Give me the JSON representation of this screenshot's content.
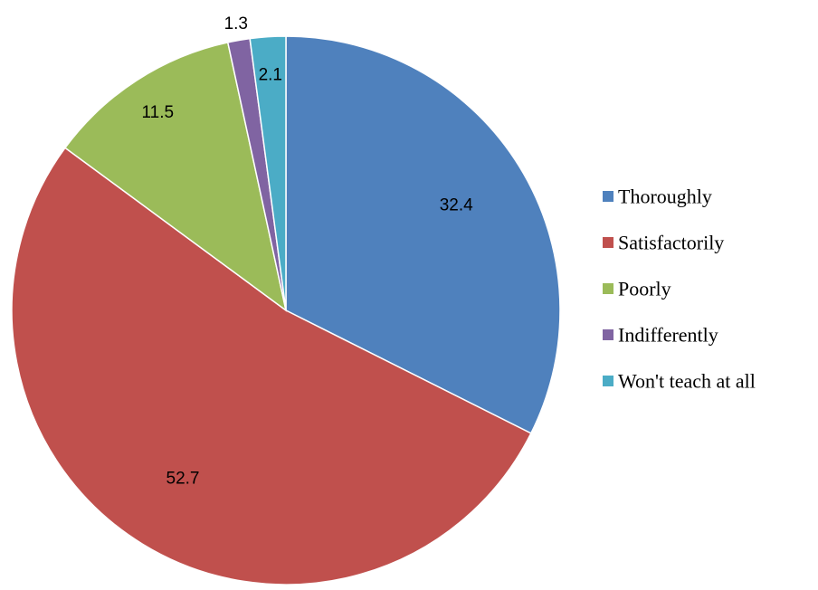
{
  "chart_data": {
    "type": "pie",
    "title": "",
    "legend_position": "right",
    "start_angle_deg": 0,
    "direction": "clockwise",
    "slices": [
      {
        "label": "Thoroughly",
        "value": 32.4,
        "value_label": "32.4",
        "color": "#4F81BD",
        "stroke": "#ffffff"
      },
      {
        "label": "Satisfactorily",
        "value": 52.7,
        "value_label": "52.7",
        "color": "#C0504D",
        "stroke": "#ffffff"
      },
      {
        "label": "Poorly",
        "value": 11.5,
        "value_label": "11.5",
        "color": "#9BBB59",
        "stroke": "#ffffff"
      },
      {
        "label": "Indifferently",
        "value": 1.3,
        "value_label": "1.3",
        "color": "#8064A2",
        "stroke": "#ffffff"
      },
      {
        "label": "Won't teach at all",
        "value": 2.1,
        "value_label": "2.1",
        "color": "#4BACC6",
        "stroke": "#ffffff"
      }
    ]
  }
}
